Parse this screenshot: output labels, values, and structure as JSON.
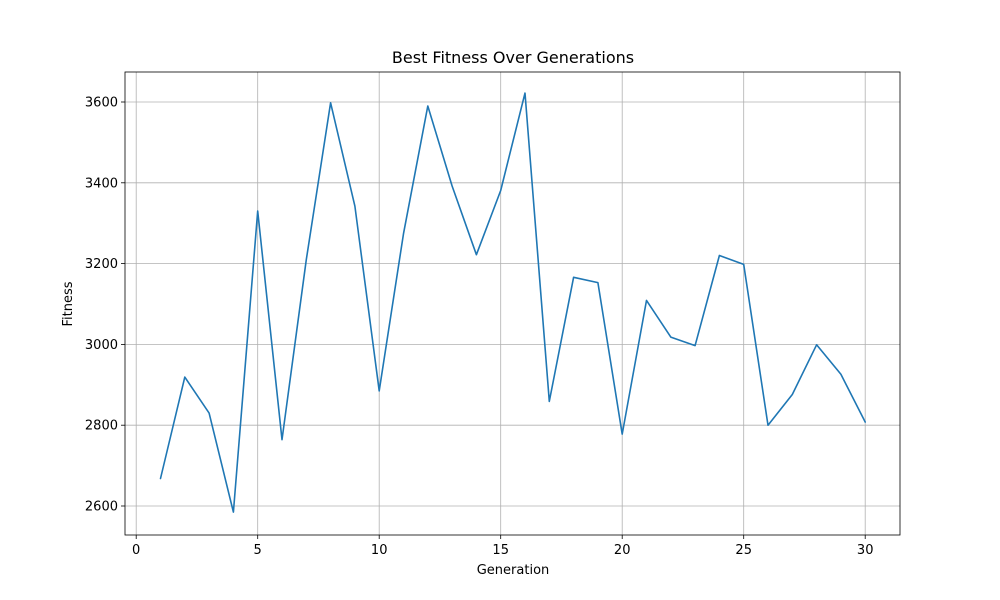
{
  "chart_data": {
    "type": "line",
    "title": "Best Fitness Over Generations",
    "xlabel": "Generation",
    "ylabel": "Fitness",
    "xlim": [
      -0.45,
      31.45
    ],
    "ylim": [
      2532,
      2673
    ],
    "xticks": [
      0,
      5,
      10,
      15,
      20,
      25,
      30
    ],
    "yticks": [
      2600,
      2800,
      3000,
      3200,
      3400,
      3600
    ],
    "grid": true,
    "series": [
      {
        "color": "#1f77b4",
        "x": [
          1,
          2,
          3,
          4,
          5,
          6,
          7,
          8,
          9,
          10,
          11,
          12,
          13,
          14,
          15,
          16,
          17,
          18,
          19,
          20,
          21,
          22,
          23,
          24,
          25,
          26,
          27,
          28,
          29,
          30
        ],
        "y": [
          2668,
          2919,
          2830,
          2585,
          3330,
          2764,
          3210,
          3598,
          3342,
          2885,
          3274,
          3590,
          3392,
          3222,
          3381,
          3622,
          2859,
          3166,
          3153,
          2778,
          3109,
          3018,
          2997,
          3220,
          3198,
          2800,
          2876,
          2999,
          2926,
          2808
        ]
      }
    ]
  }
}
